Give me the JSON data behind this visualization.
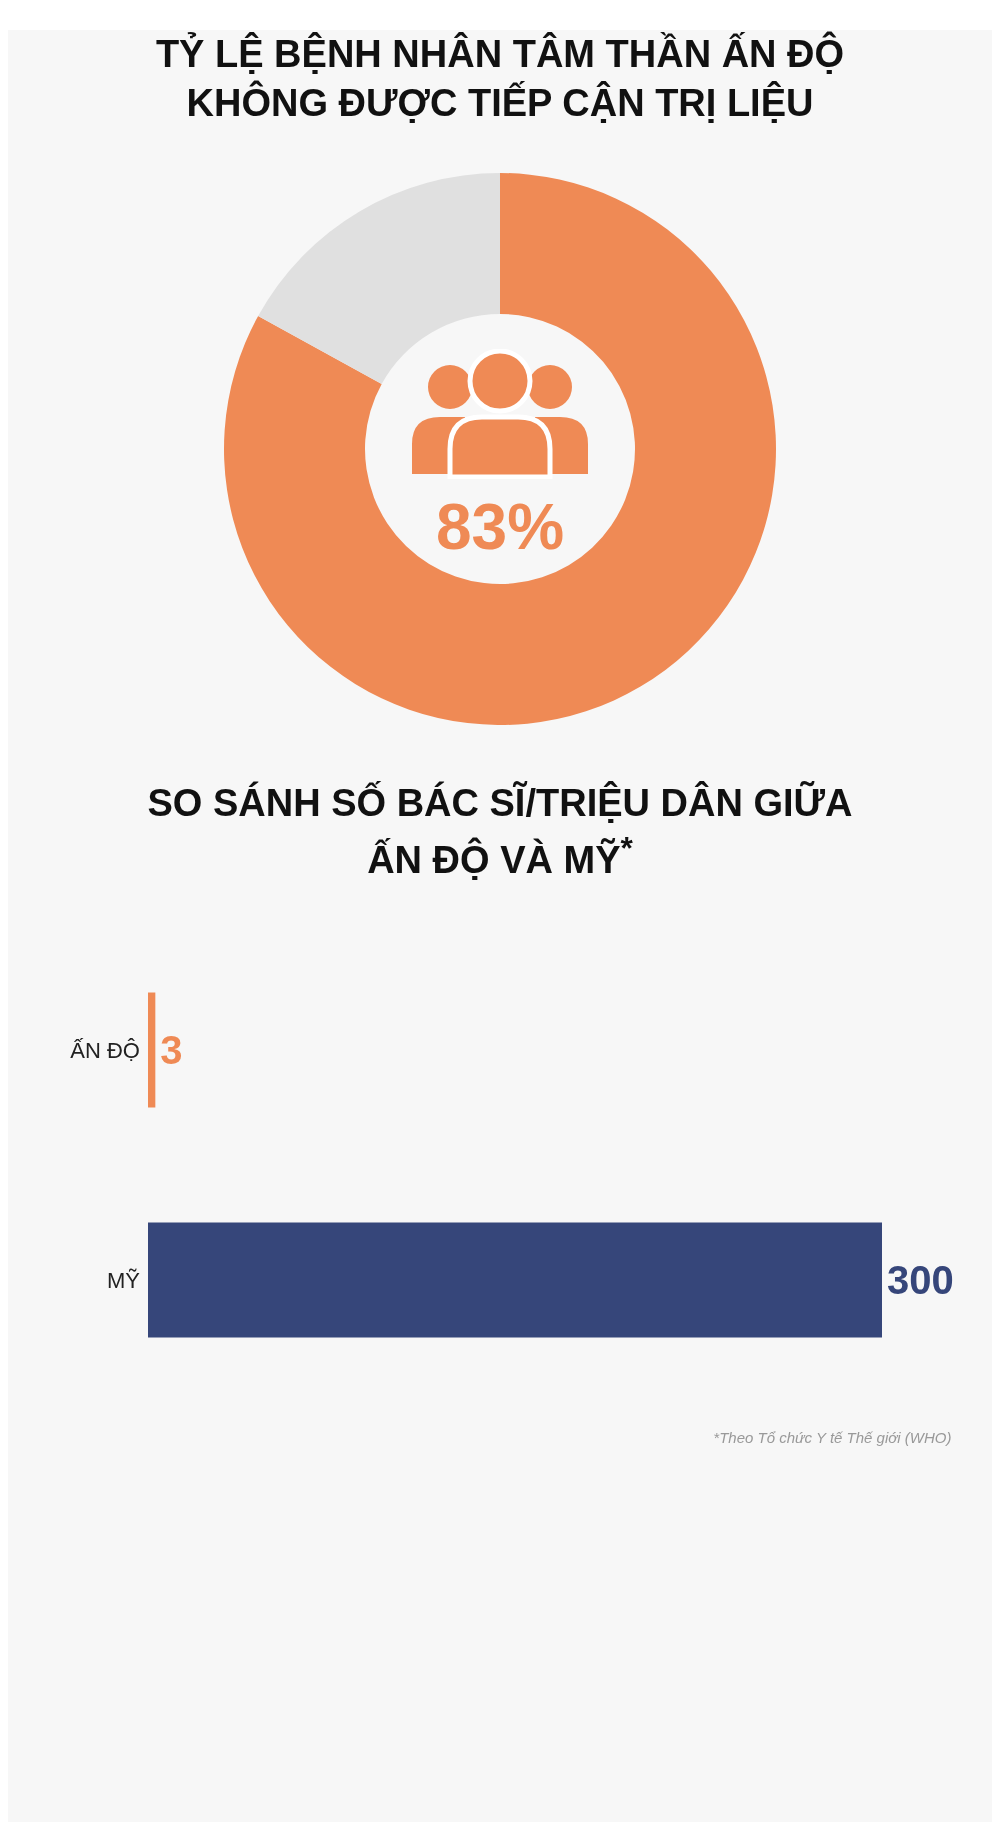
{
  "chart_data": [
    {
      "type": "donut",
      "title": "TỶ LỆ BỆNH NHÂN TÂM THẦN ẤN ĐỘ KHÔNG ĐƯỢC TIẾP CẬN TRỊ LIỆU",
      "categories": [
        null,
        null
      ],
      "values": [
        83,
        17
      ],
      "colors": [
        "#ef8a55",
        "#e0e0e0"
      ],
      "value_labels": [
        "83%",
        null
      ]
    },
    {
      "type": "bar",
      "orientation": "horizontal",
      "title": "SO SÁNH SỐ BÁC SĨ/TRIỆU DÂN GIỮA ẤN ĐỘ VÀ MỸ$^{*}$",
      "categories": [
        "ẤN ĐỘ",
        "MỸ"
      ],
      "values": [
        3,
        300
      ],
      "colors": [
        "#ef8a55",
        "#36467a"
      ],
      "data_labels": true,
      "annotations": [
        "*Theo Tổ chức Y tế Thế giới (WHO)"
      ]
    }
  ]
}
